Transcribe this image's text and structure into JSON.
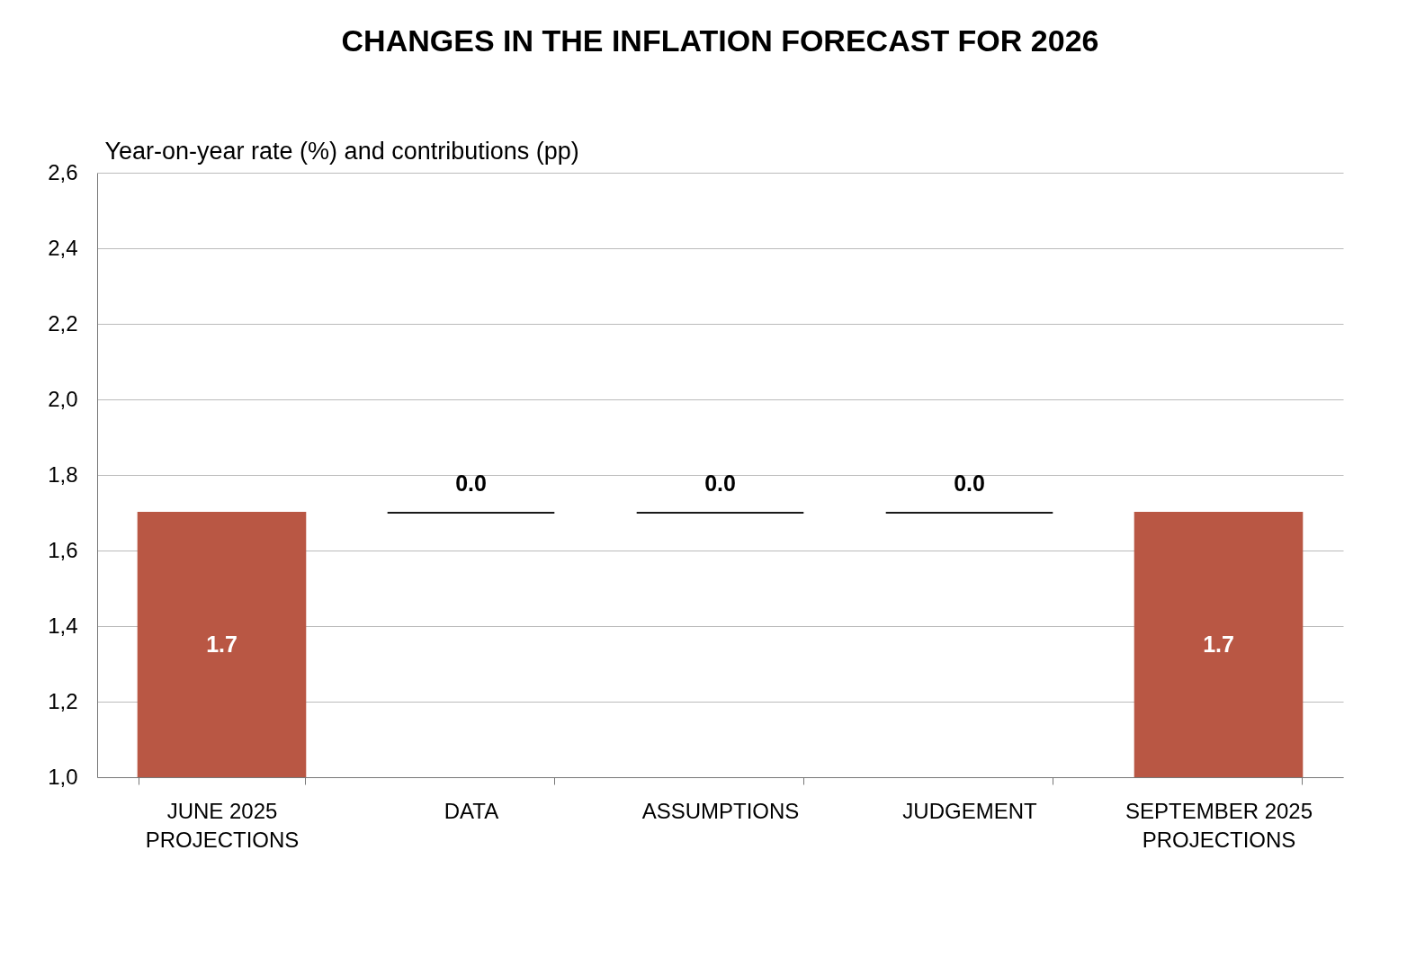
{
  "chart_data": {
    "type": "bar",
    "title": "CHANGES IN THE INFLATION FORECAST FOR 2026",
    "ylabel": "Year-on-year rate (%) and contributions (pp)",
    "categories": [
      "JUNE 2025 PROJECTIONS",
      "DATA",
      "ASSUMPTIONS",
      "JUDGEMENT",
      "SEPTEMBER 2025 PROJECTIONS"
    ],
    "values": [
      1.7,
      0.0,
      0.0,
      0.0,
      1.7
    ],
    "base": [
      null,
      1.7,
      1.7,
      1.7,
      null
    ],
    "colors": [
      "#b95744",
      "#1a1a1a",
      "#1a1a1a",
      "#1a1a1a",
      "#b95744"
    ],
    "value_labels": [
      "1.7",
      "0.0",
      "0.0",
      "0.0",
      "1.7"
    ],
    "ylim": [
      1.0,
      2.6
    ],
    "yticks": [
      {
        "value": 1.0,
        "label": "1,0"
      },
      {
        "value": 1.2,
        "label": "1,2"
      },
      {
        "value": 1.4,
        "label": "1,4"
      },
      {
        "value": 1.6,
        "label": "1,6"
      },
      {
        "value": 1.8,
        "label": "1,8"
      },
      {
        "value": 2.0,
        "label": "2,0"
      },
      {
        "value": 2.2,
        "label": "2,2"
      },
      {
        "value": 2.4,
        "label": "2,4"
      },
      {
        "value": 2.6,
        "label": "2,6"
      }
    ],
    "grid": "y"
  }
}
